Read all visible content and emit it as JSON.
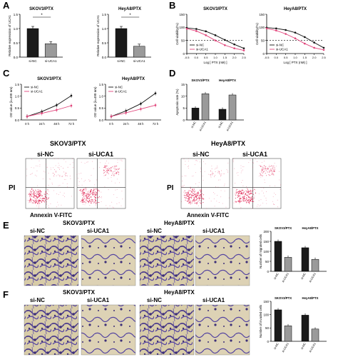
{
  "panels": {
    "A": {
      "letter": "A",
      "ylabel": "Relative expression of UCA1",
      "sig": "*",
      "charts": [
        {
          "title": "SKOV3/PTX"
        },
        {
          "title": "HeyA8/PTX"
        }
      ]
    },
    "B": {
      "letter": "B",
      "xlabel": "Log [ PTX (nM) ]",
      "ylabel": "Cell viability(%)",
      "charts": [
        {
          "title": "SKOV3/PTX"
        },
        {
          "title": "HeyA8/PTX"
        }
      ]
    },
    "C": {
      "letter": "C",
      "ylabel": "OD value (λ=490 nm)",
      "charts": [
        {
          "title": "SKOV3/PTX"
        },
        {
          "title": "HeyA8/PTX"
        }
      ]
    },
    "D": {
      "letter": "D",
      "ylabel": "Apoptosis rate (%)",
      "groups": [
        "SKOV3/PTX",
        "HeyA8/PTX"
      ]
    },
    "flow": {
      "groups": [
        {
          "title": "SKOV3/PTX",
          "conditions": [
            "si-NC",
            "si-UCA1"
          ]
        },
        {
          "title": "HeyA8/PTX",
          "conditions": [
            "si-NC",
            "si-UCA1"
          ]
        }
      ],
      "ylabel": "PI",
      "xlabel": "Annexin V-FITC"
    },
    "E": {
      "letter": "E",
      "groups": [
        "SKOV3/PTX",
        "HeyA8/PTX"
      ],
      "conditions": [
        "si-NC",
        "si-UCA1",
        "si-NC",
        "si-UCA1"
      ],
      "chart_title_left": "SKOV3/PTX",
      "chart_title_right": "HeyA8/PTX",
      "ylabel": "Number of migrated cells"
    },
    "F": {
      "letter": "F",
      "groups": [
        "SKOV3/PTX",
        "HeyA8/PTX"
      ],
      "conditions": [
        "si-NC",
        "si-UCA1",
        "si-NC",
        "si-UCA1"
      ],
      "chart_title_left": "SKOV3/PTX",
      "chart_title_right": "HeyA8/PTX",
      "ylabel": "Number of invaded cells"
    }
  },
  "legend": {
    "nc": "si-NC",
    "uca1": "si-UCA1"
  },
  "colors": {
    "nc": "#111111",
    "uca1": "#e0457b",
    "bar_nc": "#1a1a1a",
    "bar_uca1": "#9a9a9a",
    "dots": "#e02050",
    "stain": "#4a3a8a",
    "bg_stain": "#d9cfb0"
  },
  "chart_data": [
    {
      "type": "bar",
      "panel": "A",
      "title": "SKOV3/PTX",
      "categories": [
        "si-NC",
        "si-UCA1"
      ],
      "values": [
        1.0,
        0.47
      ],
      "ylabel": "Relative expression of UCA1",
      "ylim": [
        0,
        1.5
      ],
      "yticks": [
        "0.0",
        "0.5",
        "1.0",
        "1.5"
      ]
    },
    {
      "type": "bar",
      "panel": "A",
      "title": "HeyA8/PTX",
      "categories": [
        "si-NC",
        "si-UCA1"
      ],
      "values": [
        1.0,
        0.38
      ],
      "ylabel": "Relative expression of UCA1",
      "ylim": [
        0,
        1.5
      ],
      "yticks": [
        "0.0",
        "0.5",
        "1.0",
        "1.5"
      ]
    },
    {
      "type": "line",
      "panel": "B",
      "title": "SKOV3/PTX",
      "x": [
        -0.5,
        0.0,
        0.5,
        1.0,
        1.5,
        2.0,
        2.5
      ],
      "xticks": [
        "-0.5",
        "0.0",
        "0.5",
        "1.0",
        "1.5",
        "2.0",
        "2.5"
      ],
      "series": [
        {
          "name": "si-NC",
          "values": [
            98,
            94,
            85,
            70,
            52,
            35,
            20
          ]
        },
        {
          "name": "si-UCA1",
          "values": [
            95,
            86,
            70,
            50,
            32,
            20,
            12
          ]
        }
      ],
      "ylim": [
        0,
        150
      ],
      "yticks": [
        "0",
        "50",
        "100",
        "150"
      ],
      "xlabel": "Log [ PTX (nM) ]",
      "ylabel": "Cell viability(%)"
    },
    {
      "type": "line",
      "panel": "B",
      "title": "HeyA8/PTX",
      "x": [
        -0.5,
        0.0,
        0.5,
        1.0,
        1.5,
        2.0,
        2.5
      ],
      "xticks": [
        "-0.5",
        "0.0",
        "0.5",
        "1.0",
        "1.5",
        "2.0",
        "2.5"
      ],
      "series": [
        {
          "name": "si-NC",
          "values": [
            99,
            96,
            90,
            80,
            63,
            42,
            22
          ]
        },
        {
          "name": "si-UCA1",
          "values": [
            96,
            88,
            75,
            58,
            38,
            22,
            14
          ]
        }
      ],
      "ylim": [
        0,
        150
      ],
      "yticks": [
        "0",
        "50",
        "100",
        "150"
      ],
      "xlabel": "Log [ PTX (nM) ]",
      "ylabel": "Cell viability(%)"
    },
    {
      "type": "line",
      "panel": "C",
      "title": "SKOV3/PTX",
      "categories": [
        "0 h",
        "24 h",
        "48 h",
        "72 h"
      ],
      "series": [
        {
          "name": "si-NC",
          "values": [
            0.15,
            0.35,
            0.62,
            1.02
          ]
        },
        {
          "name": "si-UCA1",
          "values": [
            0.15,
            0.28,
            0.42,
            0.6
          ]
        }
      ],
      "ylim": [
        0,
        1.5
      ],
      "yticks": [
        "0.0",
        "0.5",
        "1.0",
        "1.5"
      ],
      "ylabel": "OD value (λ=490 nm)"
    },
    {
      "type": "line",
      "panel": "C",
      "title": "HeyA8/PTX",
      "categories": [
        "0 h",
        "24 h",
        "48 h",
        "72 h"
      ],
      "series": [
        {
          "name": "si-NC",
          "values": [
            0.15,
            0.38,
            0.68,
            1.12
          ]
        },
        {
          "name": "si-UCA1",
          "values": [
            0.15,
            0.3,
            0.46,
            0.62
          ]
        }
      ],
      "ylim": [
        0,
        1.5
      ],
      "yticks": [
        "0.0",
        "0.5",
        "1.0",
        "1.5"
      ],
      "ylabel": "OD value (λ=490 nm)"
    },
    {
      "type": "bar",
      "panel": "D",
      "categories": [
        "si-NC",
        "si-UCA1",
        "si-NC",
        "si-UCA1"
      ],
      "values": [
        5.0,
        11.0,
        4.5,
        10.5
      ],
      "ylabel": "Apoptosis rate (%)",
      "ylim": [
        0,
        15
      ],
      "yticks": [
        "0",
        "5",
        "10",
        "15"
      ]
    },
    {
      "type": "bar",
      "panel": "E",
      "categories": [
        "si-NC",
        "si-UCA1",
        "si-NC",
        "si-UCA1"
      ],
      "values": [
        150,
        70,
        118,
        60
      ],
      "ylabel": "Number of migrated cells",
      "ylim": [
        0,
        200
      ],
      "yticks": [
        "0",
        "50",
        "100",
        "150",
        "200"
      ]
    },
    {
      "type": "bar",
      "panel": "F",
      "categories": [
        "si-NC",
        "si-UCA1",
        "si-NC",
        "si-UCA1"
      ],
      "values": [
        118,
        58,
        98,
        46
      ],
      "ylabel": "Number of invaded cells",
      "ylim": [
        0,
        150
      ],
      "yticks": [
        "0",
        "50",
        "100",
        "150"
      ]
    }
  ]
}
